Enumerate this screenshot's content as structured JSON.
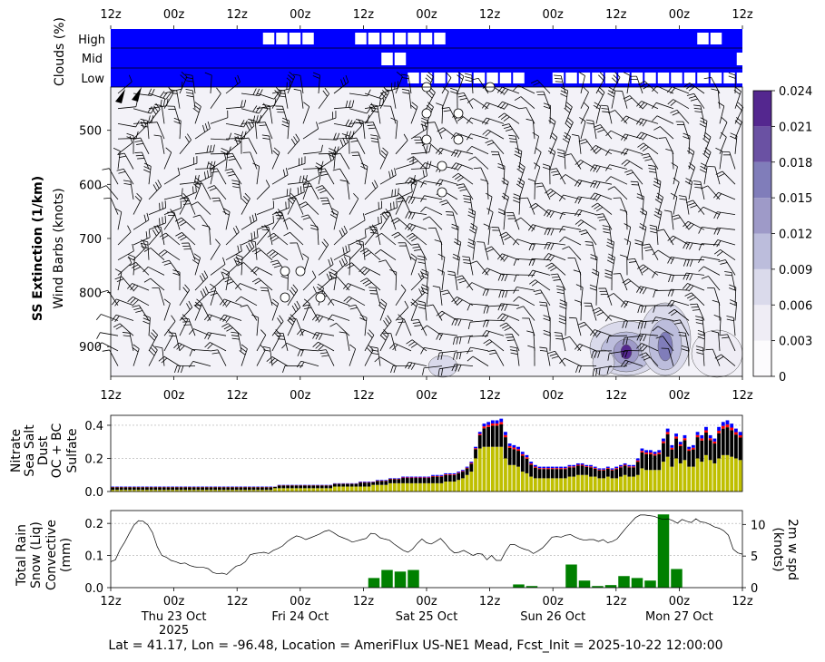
{
  "footer": "Lat = 41.17, Lon = -96.48, Location = AmeriFlux US-NE1 Mead, Fcst_Init = 2025-10-22 12:00:00",
  "time_ticks": [
    "12z",
    "00z",
    "12z",
    "00z",
    "12z",
    "00z",
    "12z",
    "00z",
    "12z",
    "00z",
    "12z"
  ],
  "date_labels": [
    {
      "text": "Thu 23 Oct",
      "sub": "2025",
      "tick": 1
    },
    {
      "text": "Fri 24 Oct",
      "tick": 3
    },
    {
      "text": "Sat 25 Oct",
      "tick": 5
    },
    {
      "text": "Sun 26 Oct",
      "tick": 7
    },
    {
      "text": "Mon 27 Oct",
      "tick": 9
    }
  ],
  "colors": {
    "cloud_bg": "#0000ff",
    "nitrate": "#008000",
    "sea_salt": "#0000ff",
    "dust": "#ff0000",
    "ocbc": "#000000",
    "sulfate": "#bfbf00",
    "rain": "#008000"
  },
  "chart_data": [
    {
      "type": "bar",
      "name": "cloud-panel",
      "ylabel": "Clouds (%)",
      "rows": [
        "High",
        "Mid",
        "Low"
      ],
      "note": "white boxes mark cloud cover in each layer",
      "high_steps": [
        12,
        13,
        14,
        15,
        19,
        20,
        21,
        22,
        23,
        24,
        25,
        45,
        46
      ],
      "mid_steps": [
        21,
        22,
        48
      ],
      "low_steps": [
        23,
        24,
        25,
        26,
        27,
        28,
        29,
        30,
        31,
        34,
        35,
        36,
        37,
        38,
        39,
        40,
        41,
        42,
        43,
        44,
        45,
        46,
        47,
        48,
        49
      ]
    },
    {
      "type": "heatmap",
      "name": "ss-extinction-panel",
      "ylabel": "SS Extinction (1/km)",
      "ylabel2": "Wind Barbs (knots)",
      "yticks": [
        500,
        600,
        700,
        800,
        900
      ],
      "ylim": [
        955,
        420
      ],
      "colorbar_ticks": [
        "0",
        "0.003",
        "0.006",
        "0.009",
        "0.012",
        "0.015",
        "0.018",
        "0.021",
        "0.024"
      ],
      "colorbar_colors": [
        "#fcfbfd",
        "#efedf5",
        "#dadaeb",
        "#bcbddc",
        "#9e9ac8",
        "#807dba",
        "#6a51a3",
        "#54278f",
        "#3f007d"
      ]
    },
    {
      "type": "bar",
      "name": "aerosol-panel",
      "ylabels": [
        "Nitrate",
        "Sea Salt",
        "Dust",
        "OC + BC",
        "Sulfate"
      ],
      "yticks": [
        "0.0",
        "0.2",
        "0.4"
      ],
      "ylim": [
        0,
        0.46
      ],
      "total": [
        0.03,
        0.03,
        0.03,
        0.03,
        0.03,
        0.03,
        0.03,
        0.03,
        0.03,
        0.03,
        0.03,
        0.03,
        0.03,
        0.03,
        0.03,
        0.03,
        0.03,
        0.03,
        0.03,
        0.03,
        0.03,
        0.03,
        0.03,
        0.03,
        0.03,
        0.03,
        0.03,
        0.03,
        0.03,
        0.03,
        0.03,
        0.03,
        0.03,
        0.03,
        0.03,
        0.03,
        0.03,
        0.03,
        0.03,
        0.04,
        0.04,
        0.04,
        0.04,
        0.04,
        0.04,
        0.04,
        0.04,
        0.04,
        0.04,
        0.04,
        0.04,
        0.04,
        0.05,
        0.05,
        0.05,
        0.05,
        0.05,
        0.05,
        0.06,
        0.06,
        0.06,
        0.06,
        0.07,
        0.07,
        0.07,
        0.08,
        0.08,
        0.08,
        0.09,
        0.09,
        0.09,
        0.09,
        0.09,
        0.09,
        0.09,
        0.1,
        0.1,
        0.1,
        0.11,
        0.11,
        0.11,
        0.12,
        0.13,
        0.15,
        0.18,
        0.27,
        0.36,
        0.41,
        0.42,
        0.43,
        0.43,
        0.44,
        0.36,
        0.29,
        0.28,
        0.27,
        0.24,
        0.22,
        0.18,
        0.16,
        0.15,
        0.15,
        0.15,
        0.15,
        0.15,
        0.15,
        0.15,
        0.16,
        0.16,
        0.17,
        0.17,
        0.16,
        0.16,
        0.15,
        0.14,
        0.14,
        0.15,
        0.14,
        0.15,
        0.16,
        0.17,
        0.16,
        0.16,
        0.2,
        0.26,
        0.25,
        0.25,
        0.24,
        0.25,
        0.32,
        0.38,
        0.28,
        0.35,
        0.3,
        0.34,
        0.27,
        0.28,
        0.36,
        0.34,
        0.39,
        0.34,
        0.32,
        0.39,
        0.42,
        0.43,
        0.41,
        0.38,
        0.36
      ],
      "sulfate": [
        0.01,
        0.01,
        0.01,
        0.01,
        0.01,
        0.01,
        0.01,
        0.01,
        0.01,
        0.01,
        0.01,
        0.01,
        0.01,
        0.01,
        0.01,
        0.01,
        0.01,
        0.01,
        0.01,
        0.01,
        0.01,
        0.01,
        0.01,
        0.01,
        0.01,
        0.01,
        0.01,
        0.01,
        0.01,
        0.01,
        0.01,
        0.01,
        0.01,
        0.01,
        0.01,
        0.01,
        0.01,
        0.01,
        0.02,
        0.02,
        0.02,
        0.02,
        0.02,
        0.02,
        0.02,
        0.02,
        0.02,
        0.02,
        0.02,
        0.02,
        0.02,
        0.02,
        0.03,
        0.03,
        0.03,
        0.03,
        0.03,
        0.03,
        0.03,
        0.03,
        0.03,
        0.04,
        0.04,
        0.04,
        0.04,
        0.05,
        0.05,
        0.05,
        0.05,
        0.05,
        0.05,
        0.05,
        0.05,
        0.05,
        0.05,
        0.05,
        0.05,
        0.05,
        0.06,
        0.06,
        0.06,
        0.07,
        0.08,
        0.1,
        0.12,
        0.2,
        0.26,
        0.27,
        0.27,
        0.27,
        0.27,
        0.27,
        0.2,
        0.16,
        0.16,
        0.15,
        0.12,
        0.11,
        0.09,
        0.08,
        0.08,
        0.08,
        0.08,
        0.08,
        0.08,
        0.08,
        0.08,
        0.09,
        0.09,
        0.1,
        0.1,
        0.1,
        0.09,
        0.09,
        0.08,
        0.08,
        0.09,
        0.08,
        0.08,
        0.09,
        0.1,
        0.09,
        0.09,
        0.1,
        0.14,
        0.13,
        0.13,
        0.13,
        0.13,
        0.18,
        0.21,
        0.15,
        0.2,
        0.17,
        0.19,
        0.15,
        0.15,
        0.2,
        0.18,
        0.22,
        0.19,
        0.17,
        0.2,
        0.22,
        0.22,
        0.21,
        0.2,
        0.19
      ],
      "dust_share": 0.08,
      "seasalt_share": 0.12,
      "nitrate_share": 0.0
    },
    {
      "type": "bar",
      "name": "precip-panel",
      "ylabel": "(mm)",
      "ylabels": [
        "Total Rain",
        "Snow (Liq)",
        "Convective"
      ],
      "yticks": [
        "0.0",
        "0.1",
        "0.2"
      ],
      "ylim": [
        0,
        0.24
      ],
      "y2label": "2m w spd",
      "y2label2": "(knots)",
      "y2ticks": [
        "0",
        "5",
        "10"
      ],
      "y2lim": [
        0,
        12.2
      ],
      "rain_bars": [
        {
          "step": 20,
          "value": 0.03
        },
        {
          "step": 21,
          "value": 0.055
        },
        {
          "step": 22,
          "value": 0.05
        },
        {
          "step": 23,
          "value": 0.055
        },
        {
          "step": 31,
          "value": 0.01
        },
        {
          "step": 32,
          "value": 0.005
        },
        {
          "step": 35,
          "value": 0.072
        },
        {
          "step": 36,
          "value": 0.022
        },
        {
          "step": 37,
          "value": 0.005
        },
        {
          "step": 38,
          "value": 0.008
        },
        {
          "step": 39,
          "value": 0.036
        },
        {
          "step": 40,
          "value": 0.03
        },
        {
          "step": 41,
          "value": 0.022
        },
        {
          "step": 42,
          "value": 0.228
        },
        {
          "step": 43,
          "value": 0.058
        }
      ],
      "wind_speed": [
        4.1,
        4.4,
        6.0,
        7.2,
        8.6,
        9.9,
        10.6,
        10.5,
        9.9,
        8.7,
        6.5,
        5.1,
        4.8,
        4.3,
        4.1,
        3.8,
        3.9,
        3.5,
        3.3,
        3.2,
        3.2,
        3.0,
        2.4,
        2.2,
        2.3,
        2.1,
        2.8,
        3.4,
        3.6,
        4.1,
        5.2,
        5.4,
        5.5,
        5.6,
        5.4,
        5.9,
        6.2,
        6.6,
        7.3,
        7.8,
        8.2,
        8.0,
        7.6,
        7.9,
        8.2,
        8.5,
        8.9,
        9.1,
        8.7,
        8.2,
        7.9,
        7.6,
        7.2,
        7.4,
        7.6,
        7.8,
        8.6,
        8.5,
        7.9,
        7.7,
        7.5,
        6.9,
        6.4,
        5.9,
        5.6,
        6.1,
        7.0,
        7.7,
        7.1,
        6.9,
        7.3,
        7.8,
        7.0,
        6.1,
        5.5,
        5.6,
        5.9,
        5.5,
        5.1,
        5.4,
        5.3,
        4.4,
        5.1,
        4.3,
        4.3,
        5.7,
        6.8,
        6.8,
        6.4,
        6.1,
        5.9,
        5.4,
        5.8,
        6.3,
        7.1,
        8.0,
        8.1,
        8.0,
        8.3,
        8.4,
        8.0,
        7.7,
        7.5,
        7.6,
        7.6,
        7.3,
        7.6,
        7.1,
        7.3,
        7.7,
        8.6,
        9.5,
        10.3,
        11.1,
        11.5,
        11.5,
        11.4,
        11.3,
        11.0,
        10.8,
        10.9,
        10.6,
        10.2,
        10.8,
        10.5,
        10.3,
        10.9,
        10.4,
        10.3,
        10.0,
        9.6,
        9.4,
        9.0,
        8.3,
        6.1,
        5.5,
        5.3
      ]
    }
  ]
}
